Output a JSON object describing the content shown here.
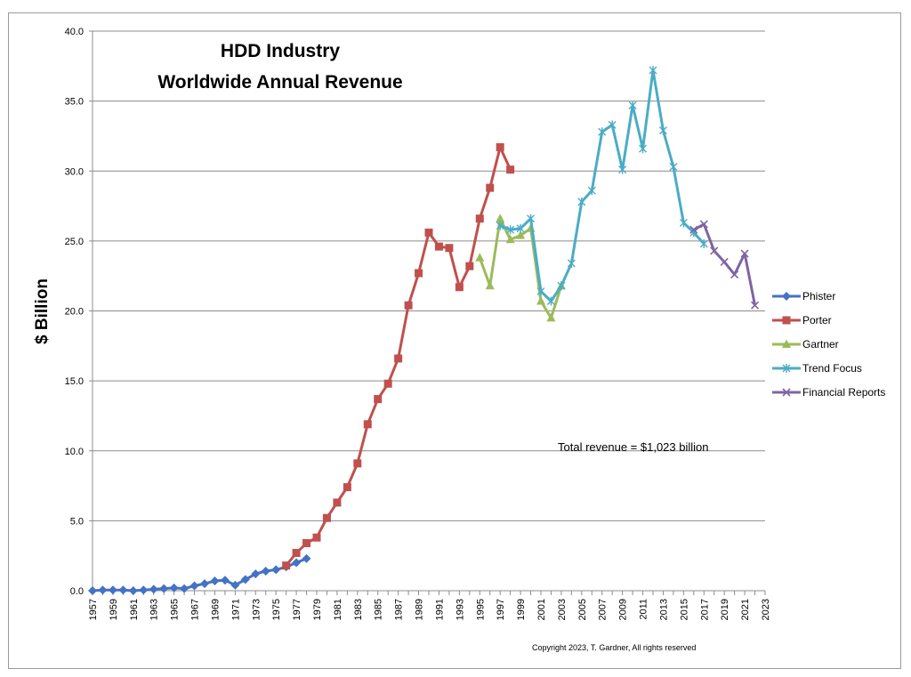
{
  "chart_data": {
    "type": "line",
    "title": [
      "HDD Industry",
      "Worldwide Annual Revenue"
    ],
    "ylabel": "$ Billion",
    "ylim": [
      0,
      40
    ],
    "yticks": [
      "0.0",
      "5.0",
      "10.0",
      "15.0",
      "20.0",
      "25.0",
      "30.0",
      "35.0",
      "40.0"
    ],
    "xlim": [
      1957,
      2023
    ],
    "xticks": [
      "1957",
      "1959",
      "1961",
      "1963",
      "1965",
      "1967",
      "1969",
      "1971",
      "1973",
      "1975",
      "1977",
      "1979",
      "1981",
      "1983",
      "1985",
      "1987",
      "1989",
      "1991",
      "1993",
      "1995",
      "1997",
      "1999",
      "2001",
      "2003",
      "2005",
      "2007",
      "2009",
      "2011",
      "2013",
      "2015",
      "2017",
      "2019",
      "2021",
      "2023"
    ],
    "grid": "horizontal",
    "legend_position": "right",
    "annotation": "Total revenue =  $1,023 billion",
    "copyright": "Copyright 2023, T. Gardner, All rights reserved",
    "series": [
      {
        "name": "Phister",
        "color": "#4472C4",
        "marker": "diamond",
        "x": [
          1957,
          1958,
          1959,
          1960,
          1961,
          1962,
          1963,
          1964,
          1965,
          1966,
          1967,
          1968,
          1969,
          1970,
          1971,
          1972,
          1973,
          1974,
          1975,
          1976,
          1977,
          1978
        ],
        "values": [
          0.0,
          0.05,
          0.05,
          0.05,
          0.0,
          0.05,
          0.1,
          0.15,
          0.2,
          0.15,
          0.35,
          0.5,
          0.7,
          0.75,
          0.4,
          0.8,
          1.2,
          1.4,
          1.5,
          1.7,
          2.0,
          2.3
        ]
      },
      {
        "name": "Porter",
        "color": "#C0504D",
        "marker": "square",
        "x": [
          1976,
          1977,
          1978,
          1979,
          1980,
          1981,
          1982,
          1983,
          1984,
          1985,
          1986,
          1987,
          1988,
          1989,
          1990,
          1991,
          1992,
          1993,
          1994,
          1995,
          1996,
          1997,
          1998
        ],
        "values": [
          1.8,
          2.7,
          3.4,
          3.8,
          5.2,
          6.3,
          7.4,
          9.1,
          11.9,
          13.7,
          14.8,
          16.6,
          20.4,
          22.7,
          25.6,
          24.6,
          24.5,
          21.7,
          23.2,
          26.6,
          28.8,
          31.7,
          30.1
        ]
      },
      {
        "name": "Gartner",
        "color": "#9BBB59",
        "marker": "triangle",
        "x": [
          1995,
          1996,
          1997,
          1998,
          1999,
          2000,
          2001,
          2002,
          2003
        ],
        "values": [
          23.8,
          21.8,
          26.6,
          25.1,
          25.4,
          25.9,
          20.7,
          19.5,
          21.8
        ]
      },
      {
        "name": "Trend Focus",
        "color": "#4BACC6",
        "marker": "star",
        "x": [
          1997,
          1998,
          1999,
          2000,
          2001,
          2002,
          2003,
          2004,
          2005,
          2006,
          2007,
          2008,
          2009,
          2010,
          2011,
          2012,
          2013,
          2014,
          2015,
          2016,
          2017
        ],
        "values": [
          26.1,
          25.8,
          25.9,
          26.6,
          21.4,
          20.7,
          21.8,
          23.4,
          27.8,
          28.6,
          32.8,
          33.3,
          30.1,
          34.7,
          31.6,
          37.2,
          32.9,
          30.3,
          26.3,
          25.6,
          24.8
        ]
      },
      {
        "name": "Financial Reports",
        "color": "#8064A2",
        "marker": "x",
        "x": [
          2016,
          2017,
          2018,
          2019,
          2020,
          2021,
          2022
        ],
        "values": [
          25.8,
          26.2,
          24.3,
          23.5,
          22.6,
          24.1,
          20.4
        ]
      }
    ]
  }
}
